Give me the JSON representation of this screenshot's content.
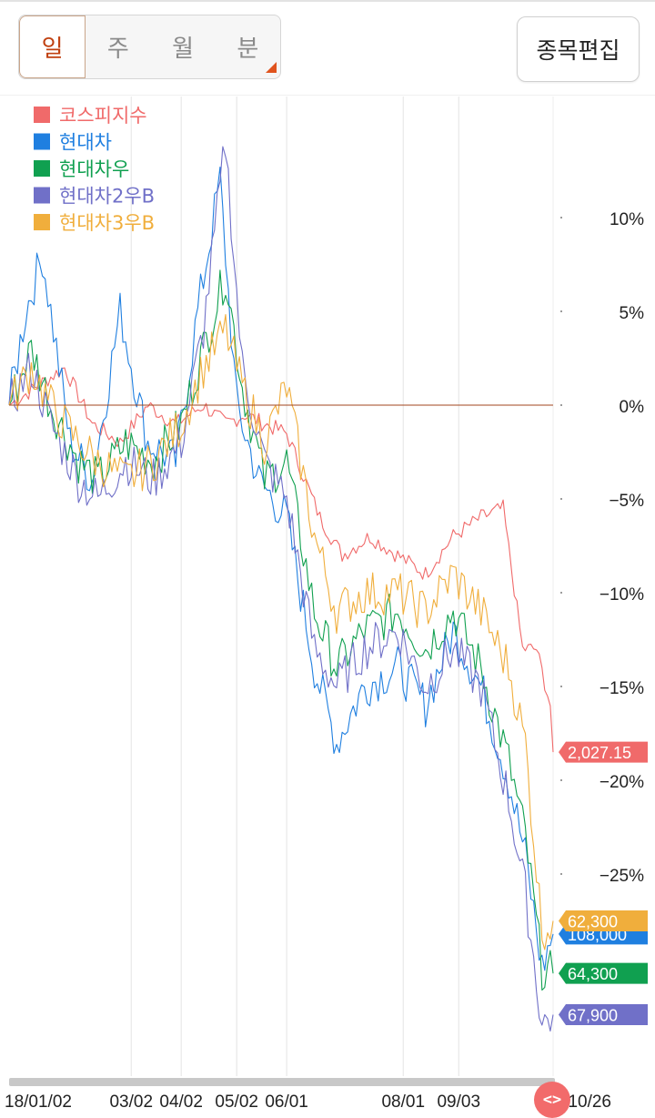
{
  "period_tabs": [
    "일",
    "주",
    "월",
    "분"
  ],
  "edit_button": "종목편집",
  "scroll_handle_glyph": "<>",
  "chart_data": {
    "type": "line",
    "ylabel": "",
    "xlabel": "",
    "y_ticks": [
      10,
      5,
      0,
      -5,
      -10,
      -15,
      -20,
      -25
    ],
    "y_tick_labels": [
      "10%",
      "5%",
      "0%",
      "−5%",
      "−10%",
      "−15%",
      "−20%",
      "−25%"
    ],
    "ylim": [
      -35,
      15
    ],
    "x_tick_labels": [
      "18/01/02",
      "03/02",
      "04/02",
      "05/02",
      "06/01",
      "08/01",
      "09/03",
      "10/26"
    ],
    "x_tick_index": [
      0,
      44,
      62,
      82,
      100,
      142,
      162,
      196
    ],
    "n_points": 197,
    "baseline": 0,
    "legend_position": "top-left",
    "grid": "vertical",
    "series": [
      {
        "name": "코스피지수",
        "color": "#f06a6a",
        "final_label": "2,027.15",
        "final_pct": -18.5,
        "points": [
          [
            0,
            0
          ],
          [
            10,
            1
          ],
          [
            20,
            2
          ],
          [
            30,
            -1
          ],
          [
            40,
            -2
          ],
          [
            50,
            0
          ],
          [
            60,
            -1
          ],
          [
            70,
            0
          ],
          [
            78,
            -1
          ],
          [
            85,
            -0.5
          ],
          [
            92,
            -1
          ],
          [
            100,
            -1.5
          ],
          [
            112,
            -6
          ],
          [
            120,
            -8
          ],
          [
            130,
            -7
          ],
          [
            140,
            -8
          ],
          [
            150,
            -9
          ],
          [
            160,
            -7
          ],
          [
            170,
            -6
          ],
          [
            178,
            -5.5
          ],
          [
            185,
            -13
          ],
          [
            190,
            -13
          ],
          [
            195,
            -16
          ],
          [
            196,
            -18.5
          ]
        ]
      },
      {
        "name": "현대차",
        "color": "#1f7fe0",
        "final_label": "108,000",
        "final_pct": -28.2,
        "points": [
          [
            0,
            0
          ],
          [
            6,
            5
          ],
          [
            12,
            8
          ],
          [
            22,
            -2
          ],
          [
            30,
            -4
          ],
          [
            40,
            5
          ],
          [
            50,
            -2
          ],
          [
            60,
            -3
          ],
          [
            68,
            5
          ],
          [
            76,
            12
          ],
          [
            82,
            0
          ],
          [
            90,
            -4
          ],
          [
            100,
            -6
          ],
          [
            110,
            -14
          ],
          [
            118,
            -18
          ],
          [
            128,
            -15
          ],
          [
            140,
            -14
          ],
          [
            150,
            -16
          ],
          [
            160,
            -12
          ],
          [
            170,
            -15
          ],
          [
            180,
            -20
          ],
          [
            186,
            -24
          ],
          [
            192,
            -30
          ],
          [
            196,
            -28.2
          ]
        ]
      },
      {
        "name": "현대차우",
        "color": "#10a050",
        "final_label": "64,300",
        "final_pct": -30.3,
        "points": [
          [
            0,
            0
          ],
          [
            8,
            3
          ],
          [
            15,
            0
          ],
          [
            25,
            -3
          ],
          [
            32,
            -4
          ],
          [
            42,
            -2
          ],
          [
            52,
            -3
          ],
          [
            62,
            -1
          ],
          [
            70,
            3
          ],
          [
            78,
            7
          ],
          [
            84,
            1
          ],
          [
            92,
            -4
          ],
          [
            100,
            -3
          ],
          [
            110,
            -11
          ],
          [
            118,
            -14
          ],
          [
            128,
            -12
          ],
          [
            140,
            -11
          ],
          [
            150,
            -13
          ],
          [
            160,
            -11
          ],
          [
            170,
            -14
          ],
          [
            180,
            -19
          ],
          [
            186,
            -23
          ],
          [
            192,
            -30
          ],
          [
            196,
            -30.3
          ]
        ]
      },
      {
        "name": "현대차2우B",
        "color": "#7070c8",
        "final_label": "67,900",
        "final_pct": -32.5,
        "points": [
          [
            0,
            0
          ],
          [
            8,
            2
          ],
          [
            15,
            -1
          ],
          [
            25,
            -4
          ],
          [
            32,
            -5
          ],
          [
            42,
            -3
          ],
          [
            52,
            -4
          ],
          [
            62,
            -2
          ],
          [
            70,
            4
          ],
          [
            78,
            14
          ],
          [
            84,
            2
          ],
          [
            92,
            -3
          ],
          [
            100,
            -5
          ],
          [
            110,
            -13
          ],
          [
            118,
            -15
          ],
          [
            128,
            -13
          ],
          [
            140,
            -12
          ],
          [
            150,
            -15
          ],
          [
            160,
            -13
          ],
          [
            170,
            -15
          ],
          [
            180,
            -21
          ],
          [
            186,
            -26
          ],
          [
            192,
            -33
          ],
          [
            196,
            -32.5
          ]
        ]
      },
      {
        "name": "현대차3우B",
        "color": "#f0ae3c",
        "final_label": "62,300",
        "final_pct": -27.5,
        "points": [
          [
            0,
            0
          ],
          [
            8,
            2
          ],
          [
            15,
            0
          ],
          [
            25,
            -2
          ],
          [
            32,
            -3
          ],
          [
            42,
            -4
          ],
          [
            52,
            -3
          ],
          [
            62,
            -1
          ],
          [
            70,
            2
          ],
          [
            78,
            4
          ],
          [
            84,
            1
          ],
          [
            92,
            -2
          ],
          [
            100,
            1
          ],
          [
            110,
            -7
          ],
          [
            118,
            -11
          ],
          [
            128,
            -10
          ],
          [
            140,
            -10
          ],
          [
            150,
            -11
          ],
          [
            160,
            -9
          ],
          [
            170,
            -11
          ],
          [
            180,
            -14
          ],
          [
            186,
            -18
          ],
          [
            192,
            -28
          ],
          [
            196,
            -27.5
          ]
        ]
      }
    ]
  }
}
